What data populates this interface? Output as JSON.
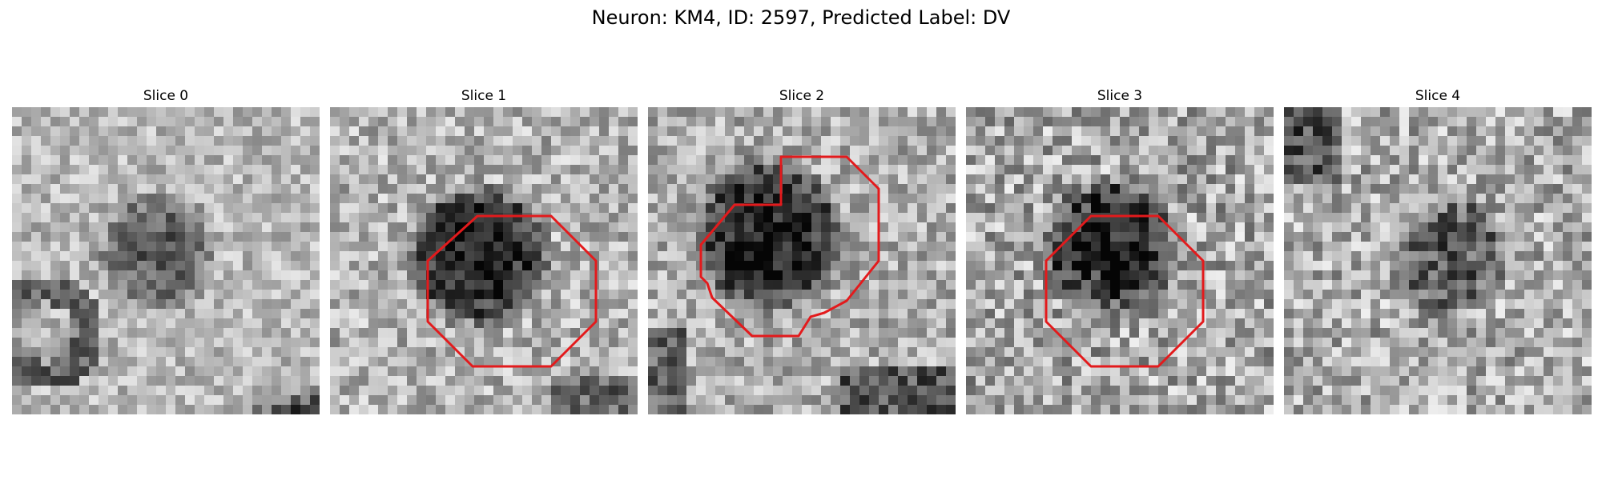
{
  "figure": {
    "title": "Neuron: KM4, ID: 2597, Predicted Label: DV",
    "colormap": "grayscale",
    "outline_color": "#e31a1c"
  },
  "slices": [
    {
      "title": "Slice 0",
      "has_outline": false
    },
    {
      "title": "Slice 1",
      "has_outline": true
    },
    {
      "title": "Slice 2",
      "has_outline": true
    },
    {
      "title": "Slice 3",
      "has_outline": true
    },
    {
      "title": "Slice 4",
      "has_outline": false
    }
  ]
}
